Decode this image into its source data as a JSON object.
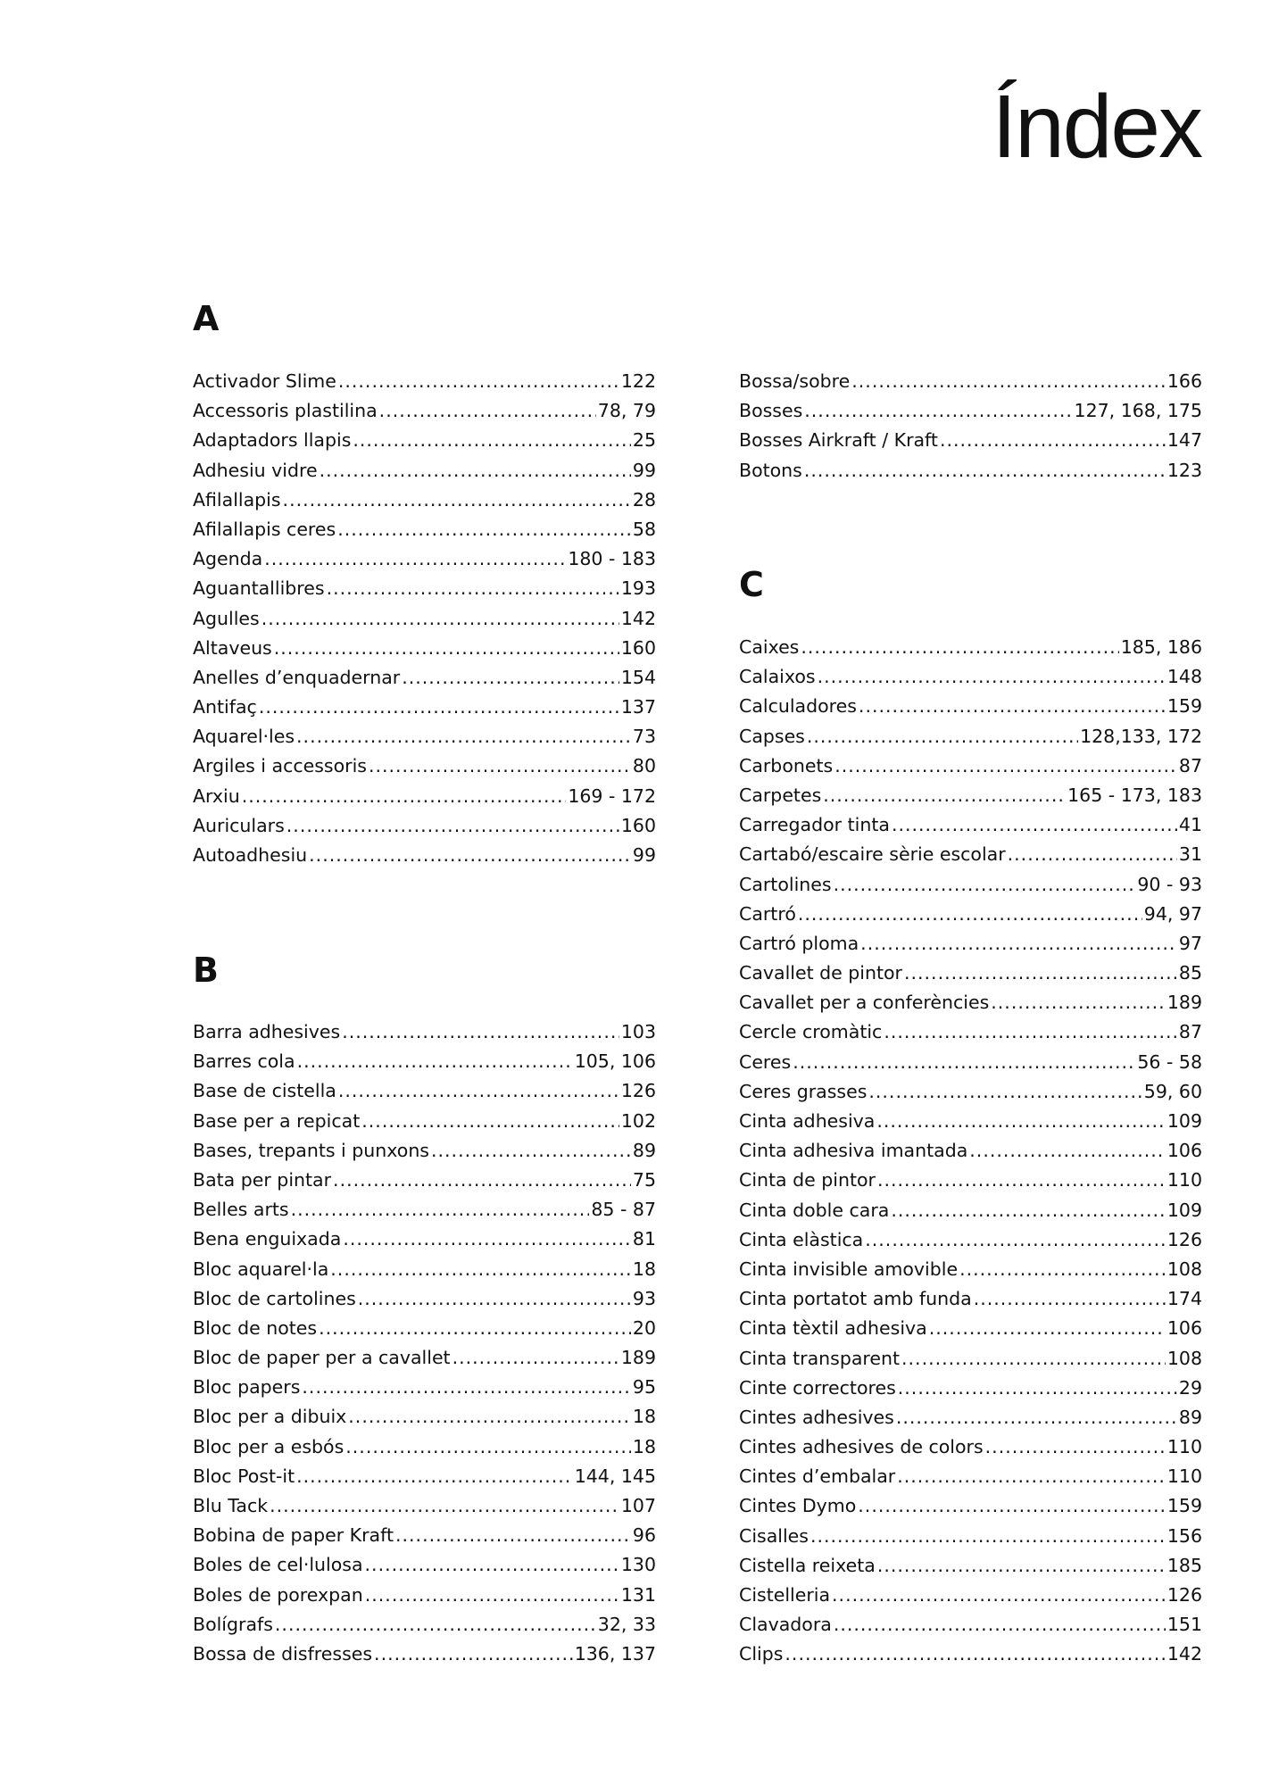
{
  "title": "Índex",
  "sections": {
    "A": {
      "heading": "A",
      "entries": [
        {
          "label": "Activador Slime",
          "page": "122"
        },
        {
          "label": "Accessoris plastilina",
          "page": "78, 79"
        },
        {
          "label": "Adaptadors llapis",
          "page": "25"
        },
        {
          "label": "Adhesiu vidre",
          "page": "99"
        },
        {
          "label": "Afilallapis",
          "page": "28"
        },
        {
          "label": "Afilallapis ceres",
          "page": "58"
        },
        {
          "label": "Agenda",
          "page": "180 - 183"
        },
        {
          "label": "Aguantallibres",
          "page": "193"
        },
        {
          "label": "Agulles",
          "page": "142"
        },
        {
          "label": "Altaveus",
          "page": "160"
        },
        {
          "label": "Anelles d’enquadernar",
          "page": "154"
        },
        {
          "label": "Antifaç",
          "page": "137"
        },
        {
          "label": "Aquarel·les",
          "page": "73"
        },
        {
          "label": "Argiles i accessoris",
          "page": "80"
        },
        {
          "label": "Arxiu",
          "page": "169 - 172"
        },
        {
          "label": "Auriculars",
          "page": "160"
        },
        {
          "label": "Autoadhesiu",
          "page": "99"
        }
      ]
    },
    "B": {
      "heading": "B",
      "entries": [
        {
          "label": "Barra adhesives",
          "page": "103"
        },
        {
          "label": "Barres cola",
          "page": "105, 106"
        },
        {
          "label": "Base de cistella",
          "page": "126"
        },
        {
          "label": "Base per a repicat",
          "page": "102"
        },
        {
          "label": "Bases, trepants i punxons",
          "page": "89"
        },
        {
          "label": "Bata per pintar",
          "page": "75"
        },
        {
          "label": "Belles arts",
          "page": "85 - 87"
        },
        {
          "label": "Bena enguixada",
          "page": "81"
        },
        {
          "label": "Bloc aquarel·la",
          "page": "18"
        },
        {
          "label": "Bloc de cartolines",
          "page": "93"
        },
        {
          "label": "Bloc de notes",
          "page": "20"
        },
        {
          "label": "Bloc de paper per a cavallet",
          "page": "189"
        },
        {
          "label": "Bloc papers",
          "page": "95"
        },
        {
          "label": "Bloc per a dibuix",
          "page": "18"
        },
        {
          "label": "Bloc per a esbós",
          "page": "18"
        },
        {
          "label": "Bloc Post-it",
          "page": "144, 145"
        },
        {
          "label": "Blu Tack",
          "page": "107"
        },
        {
          "label": "Bobina de paper Kraft",
          "page": "96"
        },
        {
          "label": "Boles de cel·lulosa",
          "page": "130"
        },
        {
          "label": "Boles de porexpan",
          "page": "131"
        },
        {
          "label": "Bolígrafs",
          "page": "32, 33"
        },
        {
          "label": "Bossa de disfresses",
          "page": "136, 137"
        }
      ],
      "continued": [
        {
          "label": "Bossa/sobre",
          "page": "166"
        },
        {
          "label": "Bosses",
          "page": "127, 168, 175"
        },
        {
          "label": "Bosses Airkraft / Kraft",
          "page": "147"
        },
        {
          "label": "Botons",
          "page": "123"
        }
      ]
    },
    "C": {
      "heading": "C",
      "entries": [
        {
          "label": "Caixes",
          "page": "185, 186"
        },
        {
          "label": "Calaixos",
          "page": "148"
        },
        {
          "label": "Calculadores",
          "page": "159"
        },
        {
          "label": "Capses",
          "page": "128,133, 172"
        },
        {
          "label": "Carbonets",
          "page": "87"
        },
        {
          "label": "Carpetes",
          "page": "165 - 173, 183"
        },
        {
          "label": "Carregador tinta",
          "page": "41"
        },
        {
          "label": "Cartabó/escaire sèrie escolar",
          "page": "31"
        },
        {
          "label": "Cartolines",
          "page": "90 - 93"
        },
        {
          "label": "Cartró",
          "page": "94, 97"
        },
        {
          "label": "Cartró ploma",
          "page": "97"
        },
        {
          "label": "Cavallet de pintor",
          "page": "85"
        },
        {
          "label": "Cavallet per a conferències",
          "page": "189"
        },
        {
          "label": "Cercle cromàtic",
          "page": "87"
        },
        {
          "label": "Ceres",
          "page": "56 - 58"
        },
        {
          "label": "Ceres grasses",
          "page": "59, 60"
        },
        {
          "label": "Cinta adhesiva",
          "page": "109"
        },
        {
          "label": "Cinta adhesiva imantada",
          "page": "106"
        },
        {
          "label": "Cinta de pintor",
          "page": "110"
        },
        {
          "label": "Cinta doble cara",
          "page": "109"
        },
        {
          "label": "Cinta elàstica",
          "page": "126"
        },
        {
          "label": "Cinta invisible amovible",
          "page": "108"
        },
        {
          "label": "Cinta portatot amb funda",
          "page": "174"
        },
        {
          "label": "Cinta tèxtil adhesiva",
          "page": "106"
        },
        {
          "label": "Cinta transparent",
          "page": "108"
        },
        {
          "label": "Cinte correctores",
          "page": "29"
        },
        {
          "label": "Cintes adhesives",
          "page": "89"
        },
        {
          "label": "Cintes adhesives de colors",
          "page": "110"
        },
        {
          "label": "Cintes d’embalar",
          "page": "110"
        },
        {
          "label": "Cintes Dymo",
          "page": "159"
        },
        {
          "label": "Cisalles",
          "page": "156"
        },
        {
          "label": "Cistella reixeta",
          "page": "185"
        },
        {
          "label": "Cistelleria",
          "page": "126"
        },
        {
          "label": "Clavadora",
          "page": "151"
        },
        {
          "label": "Clips",
          "page": "142"
        }
      ]
    }
  }
}
